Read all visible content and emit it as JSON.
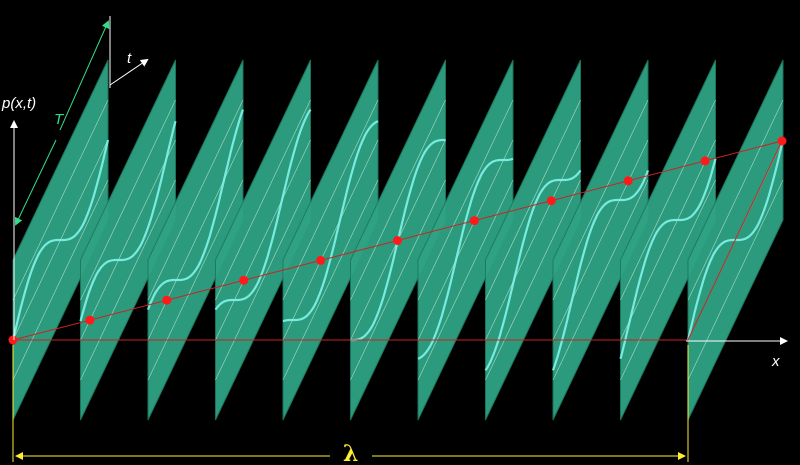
{
  "labels": {
    "p_axis": "p(x,t)",
    "t_axis": "t",
    "x_axis": "x",
    "period": "T",
    "wavelength": "λ"
  },
  "diagram": {
    "panel_count": 11,
    "colors": {
      "background": "#000000",
      "panel": "#2fa383",
      "panel_edge": "#1e7a60",
      "panel_line": "#d8f0e6",
      "wave": "#7ff4ea",
      "phase_line": "#cc2222",
      "phase_dot": "#ff1a1a",
      "axis": "#ffffff",
      "period_marker": "#33dd88",
      "wavelength_marker": "#ffee33"
    }
  }
}
